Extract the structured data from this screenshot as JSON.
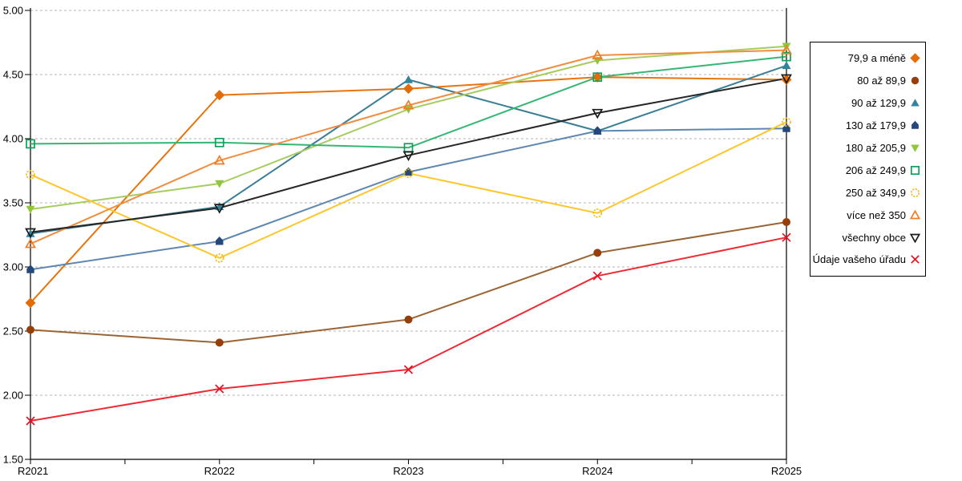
{
  "chart_data": {
    "type": "line",
    "title": "",
    "xlabel": "",
    "ylabel": "",
    "x": [
      "R2021",
      "R2022",
      "R2023",
      "R2024",
      "R2025"
    ],
    "ylim": [
      1.5,
      5.0
    ],
    "yticks": [
      "5.00",
      "4.50",
      "4.00",
      "3.50",
      "3.00",
      "2.50",
      "2.00",
      "1.50"
    ],
    "grid": "horizontal dashed gray",
    "legend_position": "right",
    "series": [
      {
        "name": "79,9 a méně",
        "marker": "diamond",
        "filled": true,
        "line_color": "#e8740c",
        "marker_color": "#e36c09",
        "values": [
          2.72,
          4.34,
          4.39,
          4.48,
          4.46
        ]
      },
      {
        "name": "80 až 89,9",
        "marker": "circle",
        "filled": true,
        "line_color": "#9a6433",
        "marker_color": "#963f0a",
        "values": [
          2.51,
          2.41,
          2.59,
          3.11,
          3.35
        ]
      },
      {
        "name": "90 až 129,9",
        "marker": "triangle-up",
        "filled": true,
        "line_color": "#3a7e96",
        "marker_color": "#31849b",
        "values": [
          3.26,
          3.47,
          4.46,
          4.06,
          4.57
        ]
      },
      {
        "name": "130 až 179,9",
        "marker": "pentagon",
        "filled": true,
        "line_color": "#5e87b0",
        "marker_color": "#24477c",
        "values": [
          2.98,
          3.2,
          3.74,
          4.06,
          4.08
        ]
      },
      {
        "name": "180 až 205,9",
        "marker": "triangle-down",
        "filled": true,
        "line_color": "#a6cc5e",
        "marker_color": "#8fc63d",
        "values": [
          3.45,
          3.65,
          4.23,
          4.61,
          4.72
        ]
      },
      {
        "name": "206 až 249,9",
        "marker": "square",
        "filled": false,
        "line_color": "#35b673",
        "marker_color": "#0da05c",
        "values": [
          3.96,
          3.97,
          3.93,
          4.48,
          4.64
        ]
      },
      {
        "name": "250 až 349,9",
        "marker": "circle",
        "filled": false,
        "line_color": "#fdc62a",
        "marker_color": "#f2bd1d",
        "values": [
          3.72,
          3.07,
          3.73,
          3.42,
          4.13
        ]
      },
      {
        "name": "více než 350",
        "marker": "triangle-up",
        "filled": false,
        "line_color": "#f08d3f",
        "marker_color": "#ef7d28",
        "values": [
          3.18,
          3.83,
          4.26,
          4.65,
          4.69
        ]
      },
      {
        "name": "všechny obce",
        "marker": "triangle-down",
        "filled": false,
        "line_color": "#262626",
        "marker_color": "#1a1a1a",
        "values": [
          3.27,
          3.46,
          3.87,
          4.2,
          4.47
        ]
      },
      {
        "name": "Údaje vašeho úřadu",
        "marker": "x",
        "filled": false,
        "line_color": "#ee2b33",
        "marker_color": "#e81123",
        "values": [
          1.8,
          2.05,
          2.2,
          2.93,
          3.23
        ]
      }
    ]
  }
}
